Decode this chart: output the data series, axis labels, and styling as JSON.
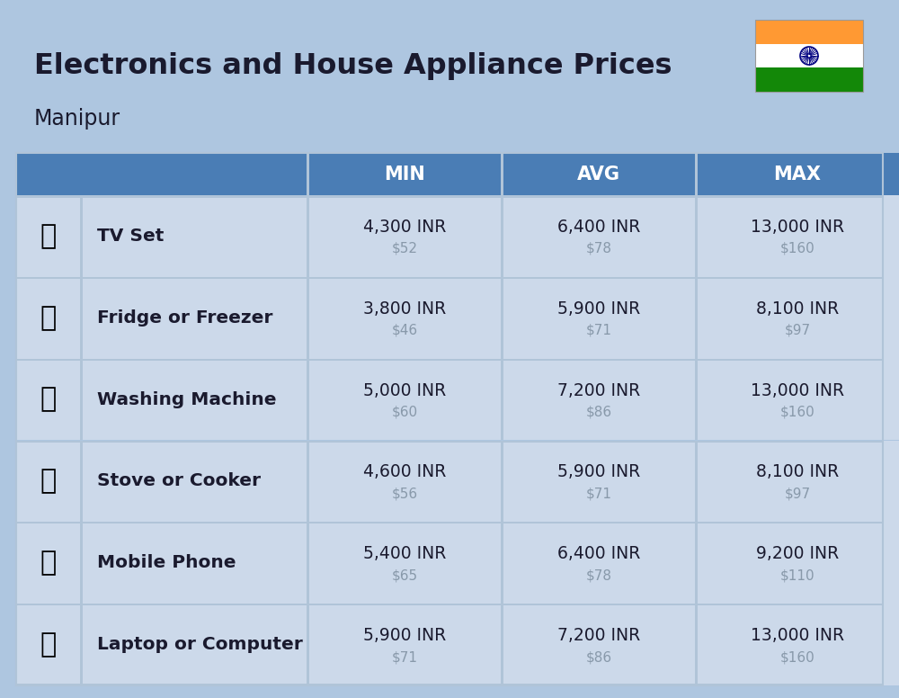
{
  "title_line1": "Electronics and House Appliance Prices",
  "subtitle": "Manipur",
  "background_color": "#aec6e0",
  "header_color": "#4a7db5",
  "header_text_color": "#ffffff",
  "row_bg": "#ccd9ea",
  "divider_color": "#b0c4d8",
  "text_color_main": "#1a1a2e",
  "text_color_usd": "#8899aa",
  "items": [
    {
      "name": "TV Set",
      "min_inr": "4,300 INR",
      "min_usd": "$52",
      "avg_inr": "6,400 INR",
      "avg_usd": "$78",
      "max_inr": "13,000 INR",
      "max_usd": "$160"
    },
    {
      "name": "Fridge or Freezer",
      "min_inr": "3,800 INR",
      "min_usd": "$46",
      "avg_inr": "5,900 INR",
      "avg_usd": "$71",
      "max_inr": "8,100 INR",
      "max_usd": "$97"
    },
    {
      "name": "Washing Machine",
      "min_inr": "5,000 INR",
      "min_usd": "$60",
      "avg_inr": "7,200 INR",
      "avg_usd": "$86",
      "max_inr": "13,000 INR",
      "max_usd": "$160"
    },
    {
      "name": "Stove or Cooker",
      "min_inr": "4,600 INR",
      "min_usd": "$56",
      "avg_inr": "5,900 INR",
      "avg_usd": "$71",
      "max_inr": "8,100 INR",
      "max_usd": "$97"
    },
    {
      "name": "Mobile Phone",
      "min_inr": "5,400 INR",
      "min_usd": "$65",
      "avg_inr": "6,400 INR",
      "avg_usd": "$78",
      "max_inr": "9,200 INR",
      "max_usd": "$110"
    },
    {
      "name": "Laptop or Computer",
      "min_inr": "5,900 INR",
      "min_usd": "$71",
      "avg_inr": "7,200 INR",
      "avg_usd": "$86",
      "max_inr": "13,000 INR",
      "max_usd": "$160"
    }
  ],
  "flag_stripe_colors": [
    "#FF9933",
    "#FFFFFF",
    "#138808"
  ],
  "col_headers": [
    "MIN",
    "AVG",
    "MAX"
  ]
}
